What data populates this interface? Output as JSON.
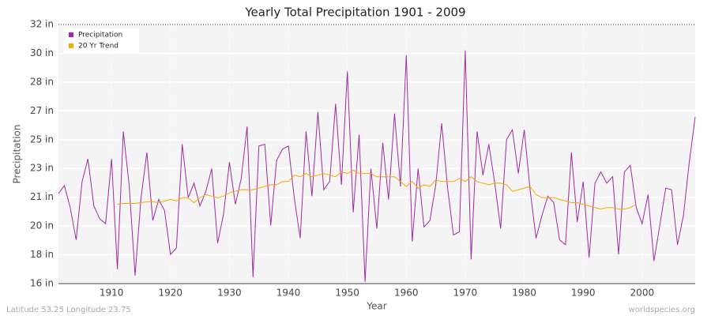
{
  "chart_data": {
    "type": "line",
    "title": "Yearly Total Precipitation 1901 - 2009",
    "xlabel": "Year",
    "ylabel": "Precipitation",
    "footer_left": "Latitude 53.25 Longitude 23.75",
    "footer_right": "worldspecies.org",
    "x": [
      1901,
      1902,
      1903,
      1904,
      1905,
      1906,
      1907,
      1908,
      1909,
      1910,
      1911,
      1912,
      1913,
      1914,
      1915,
      1916,
      1917,
      1918,
      1919,
      1920,
      1921,
      1922,
      1923,
      1924,
      1925,
      1926,
      1927,
      1928,
      1929,
      1930,
      1931,
      1932,
      1933,
      1934,
      1935,
      1936,
      1937,
      1938,
      1939,
      1940,
      1941,
      1942,
      1943,
      1944,
      1945,
      1946,
      1947,
      1948,
      1949,
      1950,
      1951,
      1952,
      1953,
      1954,
      1955,
      1956,
      1957,
      1958,
      1959,
      1960,
      1961,
      1962,
      1963,
      1964,
      1965,
      1966,
      1967,
      1968,
      1969,
      1970,
      1971,
      1972,
      1973,
      1974,
      1975,
      1976,
      1977,
      1978,
      1979,
      1980,
      1981,
      1982,
      1983,
      1984,
      1985,
      1986,
      1987,
      1988,
      1989,
      1990,
      1991,
      1992,
      1993,
      1994,
      1995,
      1996,
      1997,
      1998,
      1999,
      2000,
      2001,
      2002,
      2003,
      2004,
      2005,
      2006,
      2007,
      2008,
      2009
    ],
    "series": [
      {
        "name": "Precipitation",
        "color": "#a22aa6",
        "values": [
          21.56,
          22.05,
          20.7,
          18.7,
          22.3,
          23.7,
          20.8,
          20.0,
          19.7,
          23.7,
          16.9,
          25.4,
          22.0,
          16.5,
          21.3,
          24.1,
          19.9,
          21.2,
          20.5,
          17.8,
          18.2,
          24.6,
          21.3,
          22.2,
          20.8,
          21.7,
          23.1,
          18.5,
          20.3,
          23.5,
          20.9,
          22.5,
          25.7,
          16.4,
          24.5,
          24.6,
          19.6,
          23.6,
          24.3,
          24.5,
          21.3,
          18.8,
          25.4,
          21.4,
          26.6,
          21.8,
          22.3,
          27.1,
          22.1,
          29.1,
          20.4,
          25.2,
          16.1,
          23.1,
          19.4,
          24.7,
          21.2,
          26.5,
          22.0,
          30.1,
          18.6,
          23.1,
          19.5,
          19.9,
          22.1,
          25.9,
          21.9,
          19.0,
          19.2,
          30.4,
          17.5,
          25.4,
          22.7,
          24.6,
          22.2,
          19.4,
          24.9,
          25.5,
          22.8,
          25.5,
          21.8,
          18.8,
          20.2,
          21.4,
          21.0,
          18.7,
          18.4,
          24.1,
          19.8,
          22.3,
          17.6,
          22.2,
          22.9,
          22.2,
          22.6,
          17.8,
          22.9,
          23.3,
          20.7,
          19.7,
          21.5,
          17.4,
          19.6,
          21.9,
          21.8,
          18.4,
          20.2,
          23.5,
          26.3
        ]
      },
      {
        "name": "20 Yr Trend",
        "color": "#ffa500",
        "values": [
          null,
          null,
          null,
          null,
          null,
          null,
          null,
          null,
          null,
          null,
          20.9,
          20.95,
          20.95,
          20.95,
          21.0,
          21.05,
          21.05,
          21.0,
          21.1,
          21.2,
          21.1,
          21.3,
          21.3,
          21.0,
          21.3,
          21.5,
          21.4,
          21.3,
          21.4,
          21.6,
          21.7,
          21.8,
          21.8,
          21.8,
          21.9,
          22.0,
          22.1,
          22.1,
          22.3,
          22.3,
          22.7,
          22.6,
          22.8,
          22.6,
          22.7,
          22.8,
          22.7,
          22.6,
          22.9,
          22.8,
          23.0,
          22.8,
          22.8,
          22.8,
          22.6,
          22.6,
          22.6,
          22.6,
          22.3,
          22.0,
          22.3,
          21.9,
          22.1,
          22.0,
          22.4,
          22.3,
          22.3,
          22.3,
          22.5,
          22.3,
          22.6,
          22.3,
          22.2,
          22.1,
          22.2,
          22.2,
          22.1,
          21.7,
          21.8,
          21.9,
          22.0,
          21.5,
          21.3,
          21.3,
          21.3,
          21.2,
          21.1,
          21.0,
          21.0,
          20.9,
          20.8,
          20.7,
          20.6,
          20.7,
          20.7,
          20.6,
          20.6,
          20.7,
          20.9,
          null,
          null,
          null,
          null,
          null,
          null,
          null,
          null,
          null,
          null
        ]
      }
    ],
    "xlim": [
      1901,
      2009
    ],
    "xticks": [
      1910,
      1920,
      1930,
      1940,
      1950,
      1960,
      1970,
      1980,
      1990,
      2000
    ],
    "ylim": [
      16,
      32
    ],
    "yticks": [
      {
        "value": 16,
        "label": "16 in"
      },
      {
        "value": 17.78,
        "label": "18 in"
      },
      {
        "value": 19.56,
        "label": "20 in"
      },
      {
        "value": 21.33,
        "label": "21 in"
      },
      {
        "value": 23.11,
        "label": "23 in"
      },
      {
        "value": 24.89,
        "label": "25 in"
      },
      {
        "value": 26.67,
        "label": "27 in"
      },
      {
        "value": 28.44,
        "label": "28 in"
      },
      {
        "value": 30.22,
        "label": "30 in"
      },
      {
        "value": 32,
        "label": "32 in"
      }
    ],
    "grid": true,
    "legend": "top-left"
  }
}
